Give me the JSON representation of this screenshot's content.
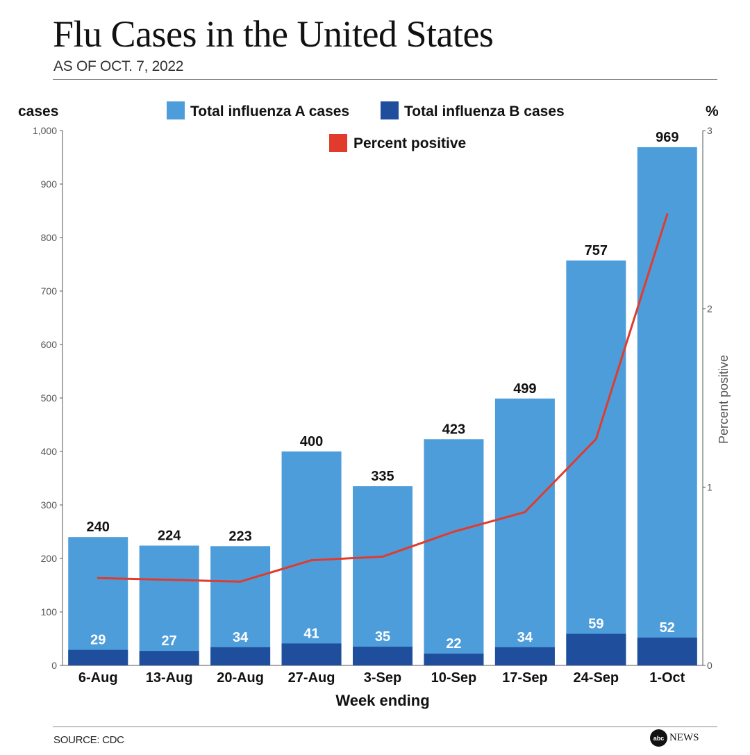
{
  "header": {
    "title": "Flu Cases in the United States",
    "subtitle": "AS OF OCT. 7, 2022"
  },
  "footer": {
    "source": "SOURCE: CDC",
    "logo_badge": "abc",
    "logo_text": "NEWS"
  },
  "colors": {
    "influenza_a": "#4e9ddb",
    "influenza_b": "#1f4e9c",
    "percent_line": "#e03b2c",
    "axis": "#555555"
  },
  "chart_data": {
    "type": "bar",
    "title": "Flu Cases in the United States",
    "subtitle": "AS OF OCT. 7, 2022",
    "xlabel": "Week ending",
    "ylabel": "cases",
    "y2label": "Percent positive",
    "y2unit": "%",
    "categories": [
      "6-Aug",
      "13-Aug",
      "20-Aug",
      "27-Aug",
      "3-Sep",
      "10-Sep",
      "17-Sep",
      "24-Sep",
      "1-Oct"
    ],
    "ylim": [
      0,
      1000
    ],
    "yticks": [
      0,
      100,
      200,
      300,
      400,
      500,
      600,
      700,
      800,
      900,
      1000
    ],
    "ytick_labels": [
      "0",
      "100",
      "200",
      "300",
      "400",
      "500",
      "600",
      "700",
      "800",
      "900",
      "1,000"
    ],
    "y2lim": [
      0,
      3
    ],
    "y2ticks": [
      0,
      1,
      2,
      3
    ],
    "legend": {
      "placement": "top-center",
      "entries": [
        "Total influenza A cases",
        "Total influenza B cases",
        "Percent positive"
      ]
    },
    "series": [
      {
        "name": "Total influenza A cases",
        "values": [
          240,
          224,
          223,
          400,
          335,
          423,
          499,
          757,
          969
        ]
      },
      {
        "name": "Total influenza B cases",
        "values": [
          29,
          27,
          34,
          41,
          35,
          22,
          34,
          59,
          52
        ]
      },
      {
        "name": "Percent positive",
        "axis": "right",
        "type": "line",
        "values": [
          0.49,
          0.48,
          0.47,
          0.59,
          0.61,
          0.75,
          0.86,
          1.27,
          2.53
        ]
      }
    ]
  }
}
